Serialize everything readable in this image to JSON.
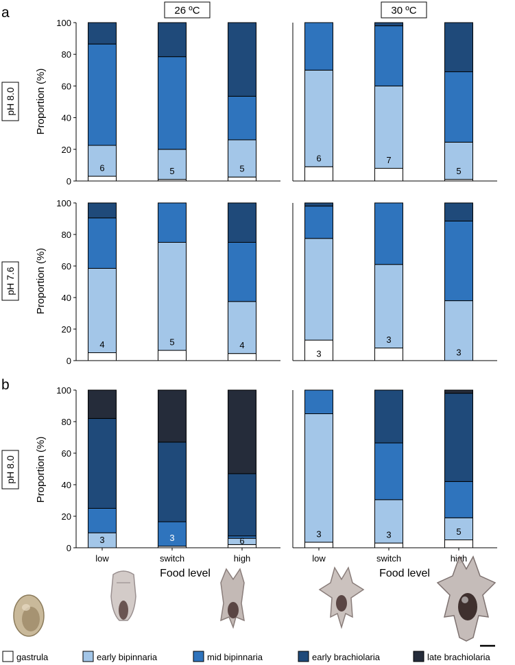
{
  "panel_labels": [
    "a",
    "b"
  ],
  "temperatures": [
    "26 ºC",
    "30 ºC"
  ],
  "row_labels": [
    "pH 8.0",
    "pH 7.6",
    "pH 8.0"
  ],
  "ylabel": "Proportion (%)",
  "xlabel": "Food level",
  "y_ticks": [
    "0",
    "20",
    "40",
    "60",
    "80",
    "100"
  ],
  "categories": [
    "low",
    "switch",
    "high"
  ],
  "colors": {
    "gastrula": "#ffffff",
    "early bipinnaria": "#a3c6e8",
    "mid bipinnaria": "#2f74bd",
    "early brachiolaria": "#1f4a7a",
    "late brachiolaria": "#252c3a"
  },
  "legend": [
    "gastrula",
    "early bipinnaria",
    "mid bipinnaria",
    "early brachiolaria",
    "late brachiolaria"
  ],
  "larva_images": [
    "gastrula",
    "early bipinnaria",
    "mid bipinnaria",
    "early brachiolaria",
    "late brachiolaria"
  ],
  "chart_data": [
    {
      "type": "bar",
      "row": "a",
      "ph": "pH 8.0",
      "temperature": "26 ºC",
      "categories": [
        "low",
        "switch",
        "high"
      ],
      "ylim": [
        0,
        100
      ],
      "series": [
        {
          "name": "gastrula",
          "values": [
            3,
            1,
            2.5
          ]
        },
        {
          "name": "early bipinnaria",
          "values": [
            19.5,
            19,
            23.5
          ]
        },
        {
          "name": "mid bipinnaria",
          "values": [
            64,
            58.5,
            27.5
          ]
        },
        {
          "name": "early brachiolaria",
          "values": [
            13.5,
            21.5,
            46.5
          ]
        }
      ],
      "n_labels": [
        "6",
        "5",
        "5"
      ]
    },
    {
      "type": "bar",
      "row": "a",
      "ph": "pH 8.0",
      "temperature": "30 ºC",
      "categories": [
        "low",
        "switch",
        "high"
      ],
      "ylim": [
        0,
        100
      ],
      "series": [
        {
          "name": "gastrula",
          "values": [
            9,
            8,
            1
          ]
        },
        {
          "name": "early bipinnaria",
          "values": [
            61,
            52,
            23.5
          ]
        },
        {
          "name": "mid bipinnaria",
          "values": [
            30,
            38,
            44.5
          ]
        },
        {
          "name": "early brachiolaria",
          "values": [
            0,
            2,
            31
          ]
        }
      ],
      "n_labels": [
        "6",
        "7",
        "5"
      ]
    },
    {
      "type": "bar",
      "row": "a",
      "ph": "pH 7.6",
      "temperature": "26 ºC",
      "categories": [
        "low",
        "switch",
        "high"
      ],
      "ylim": [
        0,
        100
      ],
      "series": [
        {
          "name": "gastrula",
          "values": [
            5,
            6.5,
            4.5
          ]
        },
        {
          "name": "early bipinnaria",
          "values": [
            53.5,
            68.5,
            33
          ]
        },
        {
          "name": "mid bipinnaria",
          "values": [
            32,
            25,
            37.5
          ]
        },
        {
          "name": "early brachiolaria",
          "values": [
            9.5,
            0,
            25
          ]
        }
      ],
      "n_labels": [
        "4",
        "5",
        "4"
      ]
    },
    {
      "type": "bar",
      "row": "a",
      "ph": "pH 7.6",
      "temperature": "30 ºC",
      "categories": [
        "low",
        "switch",
        "high"
      ],
      "ylim": [
        0,
        100
      ],
      "series": [
        {
          "name": "gastrula",
          "values": [
            13,
            8,
            0
          ]
        },
        {
          "name": "early bipinnaria",
          "values": [
            64.5,
            53,
            38
          ]
        },
        {
          "name": "mid bipinnaria",
          "values": [
            20.5,
            39,
            50.5
          ]
        },
        {
          "name": "early brachiolaria",
          "values": [
            2,
            0,
            11.5
          ]
        }
      ],
      "n_labels": [
        "3",
        "3",
        "3"
      ]
    },
    {
      "type": "bar",
      "row": "b",
      "ph": "pH 8.0",
      "temperature": "26 ºC",
      "categories": [
        "low",
        "switch",
        "high"
      ],
      "ylim": [
        0,
        100
      ],
      "series": [
        {
          "name": "gastrula",
          "values": [
            0,
            1,
            2
          ]
        },
        {
          "name": "early bipinnaria",
          "values": [
            9.5,
            0,
            4
          ]
        },
        {
          "name": "mid bipinnaria",
          "values": [
            15.5,
            15.5,
            1.5
          ]
        },
        {
          "name": "early brachiolaria",
          "values": [
            57,
            50.5,
            39.5
          ]
        },
        {
          "name": "late brachiolaria",
          "values": [
            18,
            33,
            53
          ]
        }
      ],
      "n_labels": [
        "3",
        "3",
        "6"
      ]
    },
    {
      "type": "bar",
      "row": "b",
      "ph": "pH 8.0",
      "temperature": "30 ºC",
      "categories": [
        "low",
        "switch",
        "high"
      ],
      "ylim": [
        0,
        100
      ],
      "series": [
        {
          "name": "gastrula",
          "values": [
            3.5,
            3,
            5
          ]
        },
        {
          "name": "early bipinnaria",
          "values": [
            81.5,
            27.5,
            14
          ]
        },
        {
          "name": "mid bipinnaria",
          "values": [
            15,
            36,
            23
          ]
        },
        {
          "name": "early brachiolaria",
          "values": [
            0,
            33.5,
            56
          ]
        },
        {
          "name": "late brachiolaria",
          "values": [
            0,
            0,
            2
          ]
        }
      ],
      "n_labels": [
        "3",
        "3",
        "5"
      ]
    }
  ]
}
